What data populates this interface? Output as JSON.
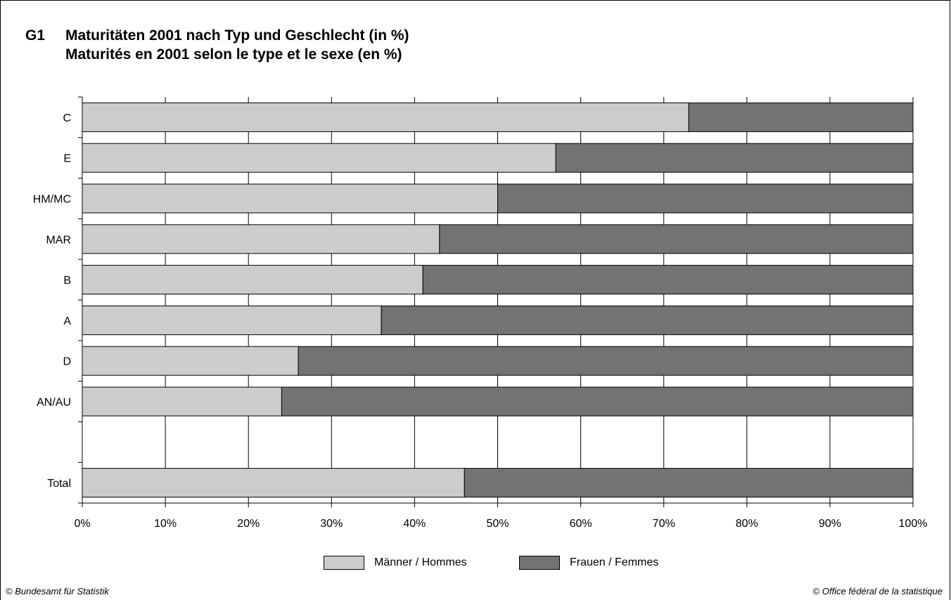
{
  "figure_id": "G1",
  "title_de": "Maturitäten 2001 nach Typ und Geschlecht (in %)",
  "title_fr": "Maturités en 2001 selon le type et le sexe (en %)",
  "credit_left": "© Bundesamt für Statistik",
  "credit_right": "© Office fédéral de la statistique",
  "colors": {
    "men": "#cccccc",
    "women": "#737373",
    "grid": "#000000"
  },
  "chart_data": {
    "type": "bar",
    "orientation": "horizontal",
    "stacked": "100%",
    "categories": [
      "C",
      "E",
      "HM/MC",
      "MAR",
      "B",
      "A",
      "D",
      "AN/AU",
      "",
      "Total"
    ],
    "series": [
      {
        "name": "Männer / Hommes",
        "values": [
          73,
          57,
          50,
          43,
          41,
          36,
          26,
          24,
          null,
          46
        ]
      },
      {
        "name": "Frauen / Femmes",
        "values": [
          27,
          43,
          50,
          57,
          59,
          64,
          74,
          76,
          null,
          54
        ]
      }
    ],
    "xlim": [
      0,
      100
    ],
    "xticks": [
      "0%",
      "10%",
      "20%",
      "30%",
      "40%",
      "50%",
      "60%",
      "70%",
      "80%",
      "90%",
      "100%"
    ],
    "grid": true,
    "legend_position": "bottom"
  }
}
